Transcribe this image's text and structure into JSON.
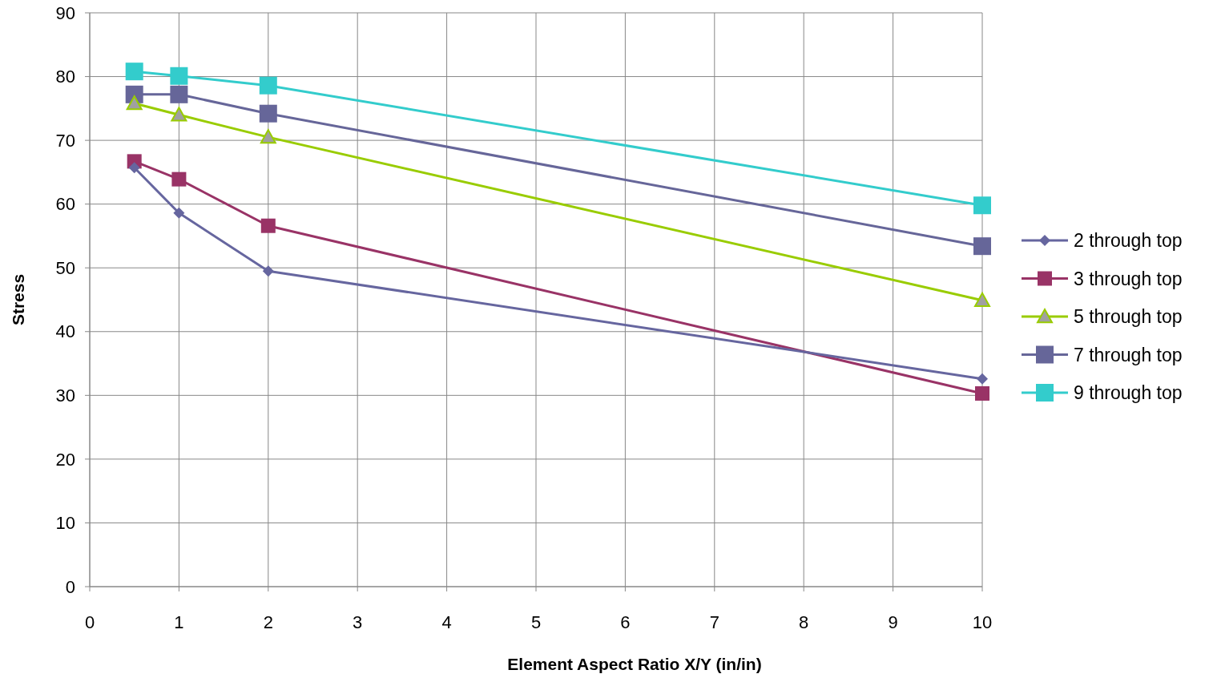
{
  "chart_data": {
    "type": "line",
    "xlabel": "Element Aspect Ratio X/Y (in/in)",
    "ylabel": "Stress",
    "x": [
      0.5,
      1,
      2,
      10
    ],
    "series": [
      {
        "name": "2 through top",
        "color": "#66669f",
        "marker": "diamond",
        "values": [
          65.7,
          58.6,
          49.5,
          32.6
        ]
      },
      {
        "name": "3 through top",
        "color": "#993366",
        "marker": "square",
        "values": [
          66.7,
          63.9,
          56.6,
          30.3
        ]
      },
      {
        "name": "5 through top",
        "color": "#99cc00",
        "marker": "triangle",
        "values": [
          75.8,
          74.0,
          70.5,
          44.9
        ]
      },
      {
        "name": "7 through top",
        "color": "#666699",
        "marker": "square",
        "values": [
          77.2,
          77.2,
          74.2,
          53.4
        ]
      },
      {
        "name": "9 through top",
        "color": "#33cccc",
        "marker": "square",
        "values": [
          80.8,
          80.1,
          78.6,
          59.8
        ]
      }
    ],
    "xlim": [
      0,
      10
    ],
    "xticks": [
      0,
      1,
      2,
      3,
      4,
      5,
      6,
      7,
      8,
      9,
      10
    ],
    "ylim": [
      0,
      90
    ],
    "yticks": [
      0,
      10,
      20,
      30,
      40,
      50,
      60,
      70,
      80,
      90
    ],
    "grid": true,
    "legend": "right",
    "line_style": "solid"
  }
}
